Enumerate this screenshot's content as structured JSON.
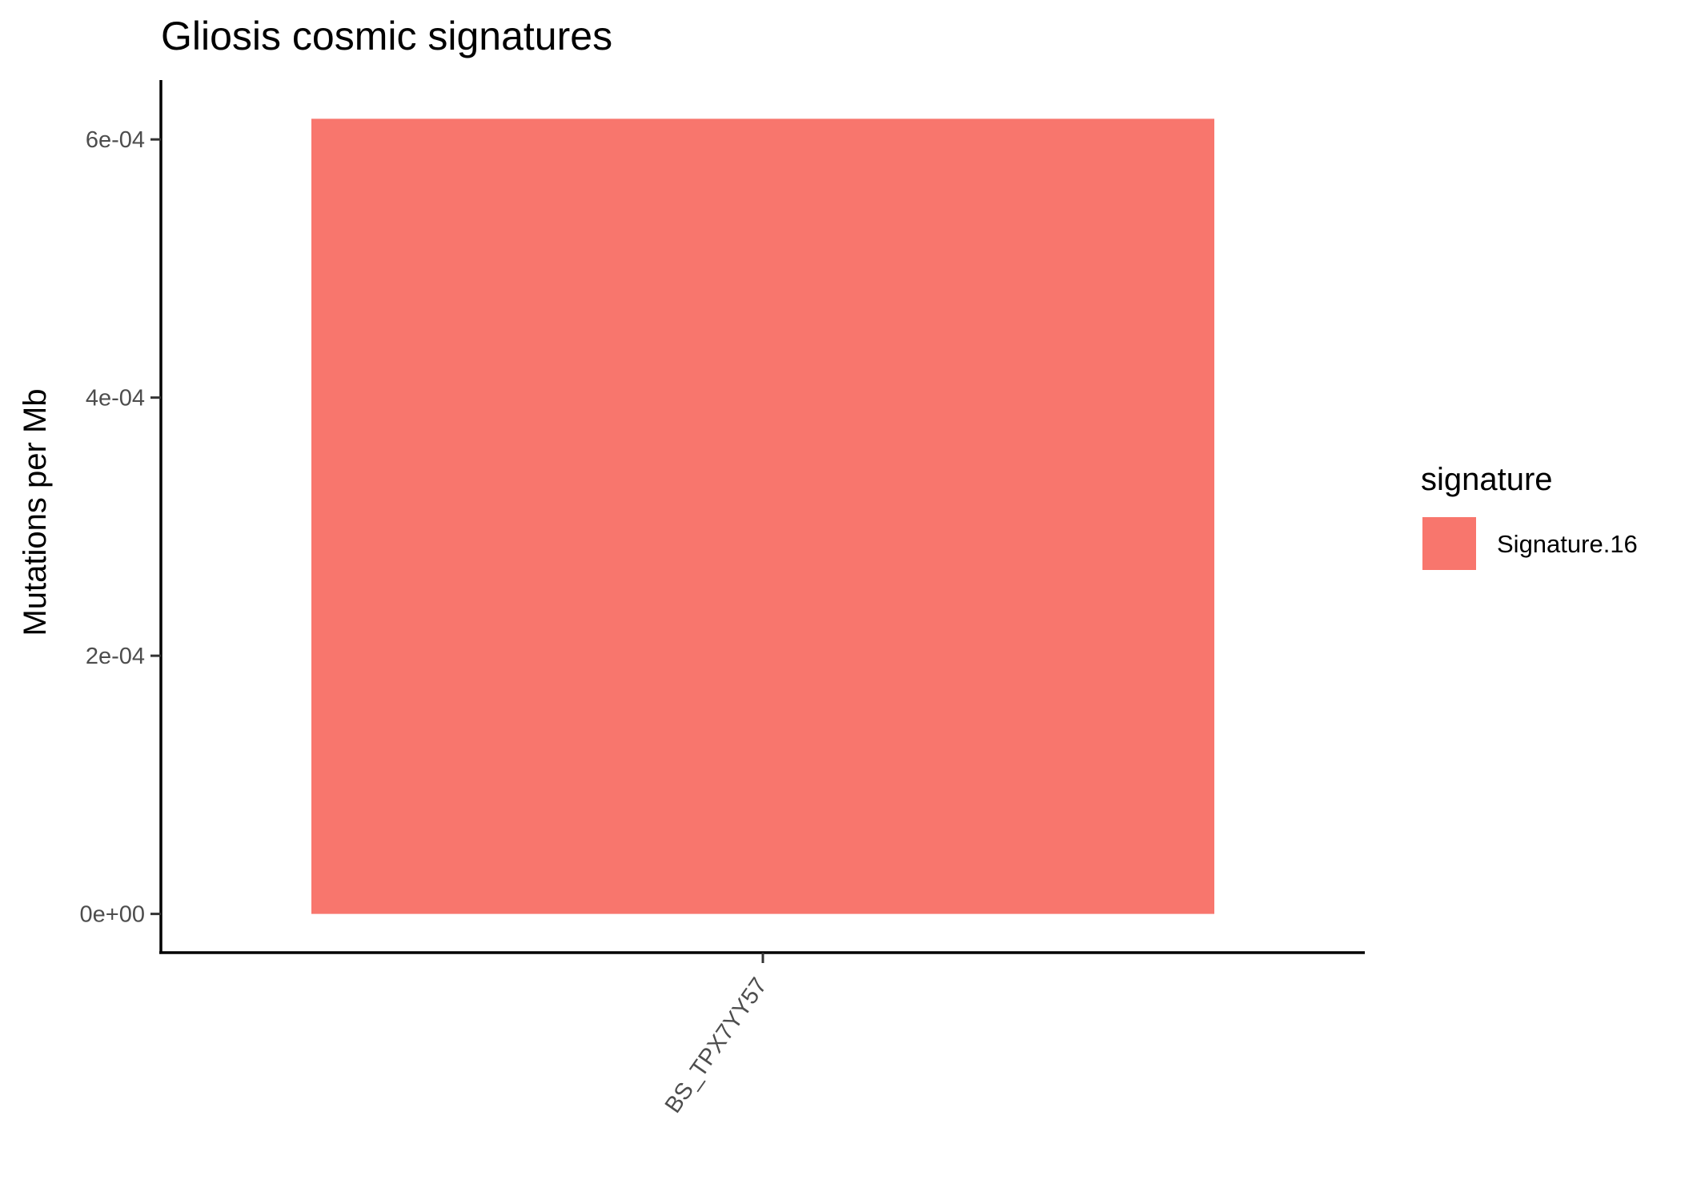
{
  "chart_data": {
    "type": "bar",
    "title": "Gliosis cosmic signatures",
    "xlabel": "",
    "ylabel": "Mutations per Mb",
    "categories": [
      "BS_TPX7YY57"
    ],
    "series": [
      {
        "name": "Signature.16",
        "values": [
          0.000616
        ],
        "color": "#F8766D"
      }
    ],
    "ylim": [
      -3e-05,
      0.000646
    ],
    "yticks": [
      0,
      0.0002,
      0.0004,
      0.0006
    ],
    "ytick_labels": [
      "0e+00",
      "2e-04",
      "4e-04",
      "6e-04"
    ],
    "legend": {
      "title": "signature",
      "position": "right"
    },
    "grid": false
  }
}
